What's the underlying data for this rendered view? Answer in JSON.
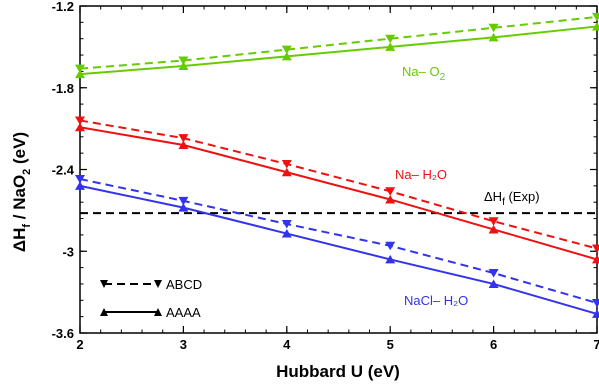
{
  "chart_data": {
    "type": "line",
    "xlabel": "Hubbard U (eV)",
    "ylabel": {
      "main": "ΔH",
      "sub": "f",
      "mid": " / NaO",
      "sub2": "2",
      "tail": " (eV)"
    },
    "xlim": [
      2,
      7
    ],
    "ylim": [
      -3.6,
      -1.2
    ],
    "xticks": [
      2,
      3,
      4,
      5,
      6,
      7
    ],
    "yticks": [
      -1.2,
      -1.8,
      -2.4,
      -3.0,
      -3.6
    ],
    "ytick_labels": [
      "-1.2",
      "-1.8",
      "-2.4",
      "-3",
      "-3.6"
    ],
    "x": [
      2,
      3,
      4,
      5,
      6,
      7
    ],
    "series": [
      {
        "group": "Na–O2",
        "method": "ABCD",
        "color": "#66cc00",
        "dash": true,
        "marker": "triangle-down",
        "values": [
          -1.66,
          -1.6,
          -1.52,
          -1.44,
          -1.36,
          -1.28
        ]
      },
      {
        "group": "Na–O2",
        "method": "AAAA",
        "color": "#66cc00",
        "dash": false,
        "marker": "triangle-up",
        "values": [
          -1.7,
          -1.64,
          -1.57,
          -1.5,
          -1.43,
          -1.35
        ]
      },
      {
        "group": "Na–H2O",
        "method": "ABCD",
        "color": "#ee1111",
        "dash": true,
        "marker": "triangle-down",
        "values": [
          -2.04,
          -2.17,
          -2.36,
          -2.56,
          -2.78,
          -2.98
        ]
      },
      {
        "group": "Na–H2O",
        "method": "AAAA",
        "color": "#ee1111",
        "dash": false,
        "marker": "triangle-up",
        "values": [
          -2.09,
          -2.22,
          -2.42,
          -2.62,
          -2.84,
          -3.06
        ]
      },
      {
        "group": "NaCl–H2O",
        "method": "ABCD",
        "color": "#3333ee",
        "dash": true,
        "marker": "triangle-down",
        "values": [
          -2.47,
          -2.63,
          -2.8,
          -2.96,
          -3.16,
          -3.38
        ]
      },
      {
        "group": "NaCl–H2O",
        "method": "AAAA",
        "color": "#3333ee",
        "dash": false,
        "marker": "triangle-up",
        "values": [
          -2.52,
          -2.68,
          -2.87,
          -3.06,
          -3.24,
          -3.46
        ]
      }
    ],
    "reference_line": {
      "y": -2.72,
      "color": "#000000",
      "dash": true
    },
    "annotations": {
      "nao2": {
        "main": "Na– O",
        "sub": "2",
        "color": "#66cc00"
      },
      "nah2o": {
        "text": "Na– H₂O",
        "color": "#ee1111"
      },
      "naclh2o": {
        "text": "NaCl– H₂O",
        "color": "#3333ee"
      },
      "exp": {
        "main": "ΔH",
        "sub": "f",
        "tail": "  (Exp)",
        "color": "#000000"
      }
    },
    "legend": {
      "placement": "bottom-left",
      "entries": [
        {
          "label": "ABCD",
          "dash": true,
          "marker": "triangle-down"
        },
        {
          "label": "AAAA",
          "dash": false,
          "marker": "triangle-up"
        }
      ]
    },
    "grid": false
  }
}
